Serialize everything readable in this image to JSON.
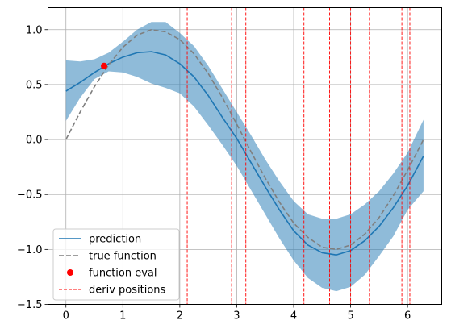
{
  "chart_data": {
    "type": "line",
    "xlim": [
      -0.315,
      6.6
    ],
    "ylim": [
      -1.5,
      1.2
    ],
    "x_ticks": [
      0,
      1,
      2,
      3,
      4,
      5,
      6
    ],
    "y_ticks": [
      -1.5,
      -1.0,
      -0.5,
      0.0,
      0.5,
      1.0
    ],
    "x_tick_labels": [
      "0",
      "1",
      "2",
      "3",
      "4",
      "5",
      "6"
    ],
    "y_tick_labels": [
      "−1.5",
      "−1.0",
      "−0.5",
      "0.0",
      "0.5",
      "1.0"
    ],
    "grid": true,
    "legend_position": "lower-left",
    "legend": [
      {
        "label": "prediction",
        "kind": "line"
      },
      {
        "label": "true function",
        "kind": "dashed"
      },
      {
        "label": "function eval",
        "kind": "dot"
      },
      {
        "label": "deriv positions",
        "kind": "vline"
      }
    ],
    "series": [
      {
        "name": "prediction",
        "color": "#1f77b4",
        "x": [
          0,
          0.25,
          0.5,
          0.75,
          1.0,
          1.25,
          1.5,
          1.75,
          2.0,
          2.25,
          2.5,
          2.75,
          3.0,
          3.25,
          3.5,
          3.75,
          4.0,
          4.25,
          4.5,
          4.75,
          5.0,
          5.25,
          5.5,
          5.75,
          6.0,
          6.28
        ],
        "y": [
          0.44,
          0.52,
          0.61,
          0.69,
          0.75,
          0.79,
          0.8,
          0.77,
          0.69,
          0.57,
          0.4,
          0.2,
          0.01,
          -0.21,
          -0.43,
          -0.64,
          -0.83,
          -0.96,
          -1.03,
          -1.05,
          -1.01,
          -0.92,
          -0.79,
          -0.62,
          -0.42,
          -0.15
        ]
      },
      {
        "name": "true function",
        "color": "#7f7f7f",
        "x": [
          0,
          0.25,
          0.5,
          0.75,
          1.0,
          1.25,
          1.5,
          1.75,
          2.0,
          2.25,
          2.5,
          2.75,
          3.0,
          3.25,
          3.5,
          3.75,
          4.0,
          4.25,
          4.5,
          4.75,
          5.0,
          5.25,
          5.5,
          5.75,
          6.0,
          6.28
        ],
        "y": [
          0.0,
          0.25,
          0.48,
          0.68,
          0.84,
          0.95,
          1.0,
          0.98,
          0.91,
          0.78,
          0.6,
          0.38,
          0.14,
          -0.11,
          -0.35,
          -0.57,
          -0.76,
          -0.89,
          -0.98,
          -1.0,
          -0.96,
          -0.86,
          -0.71,
          -0.51,
          -0.28,
          0.0
        ]
      }
    ],
    "confidence_band": {
      "color": "#1f77b4",
      "opacity": 0.5,
      "x": [
        0,
        0.25,
        0.5,
        0.75,
        1.0,
        1.25,
        1.5,
        1.75,
        2.0,
        2.25,
        2.5,
        2.75,
        3.0,
        3.25,
        3.5,
        3.75,
        4.0,
        4.25,
        4.5,
        4.75,
        5.0,
        5.25,
        5.5,
        5.75,
        6.0,
        6.28
      ],
      "lower": [
        0.17,
        0.38,
        0.55,
        0.62,
        0.61,
        0.57,
        0.51,
        0.47,
        0.42,
        0.3,
        0.13,
        -0.05,
        -0.24,
        -0.46,
        -0.68,
        -0.9,
        -1.1,
        -1.26,
        -1.35,
        -1.38,
        -1.34,
        -1.23,
        -1.06,
        -0.88,
        -0.64,
        -0.47
      ],
      "upper": [
        0.72,
        0.71,
        0.73,
        0.79,
        0.89,
        1.0,
        1.07,
        1.07,
        0.97,
        0.85,
        0.67,
        0.46,
        0.25,
        0.04,
        -0.18,
        -0.38,
        -0.56,
        -0.68,
        -0.72,
        -0.72,
        -0.68,
        -0.59,
        -0.47,
        -0.31,
        -0.12,
        0.18
      ]
    },
    "function_eval": {
      "color": "#ff0000",
      "points": [
        {
          "x": 0.67,
          "y": 0.67
        }
      ]
    },
    "deriv_positions": {
      "color": "#ff0000",
      "x": [
        2.13,
        2.91,
        3.16,
        4.18,
        4.63,
        5.0,
        5.33,
        5.9,
        6.04
      ]
    }
  }
}
